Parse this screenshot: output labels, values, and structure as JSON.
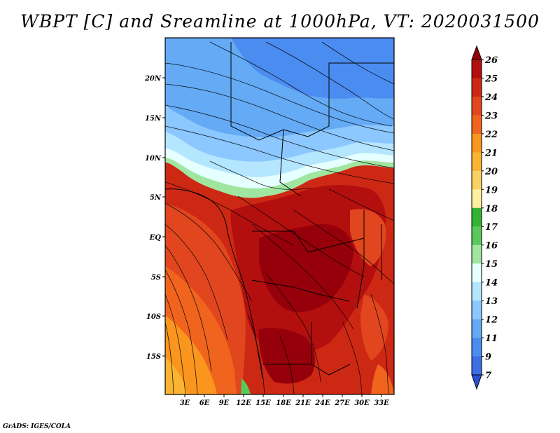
{
  "title": "WBPT [C] and Sreamline at 1000hPa, VT: 2020031500",
  "credit": "GrADS: IGES/COLA",
  "map": {
    "lat_labels": [
      "20N",
      "15N",
      "10N",
      "5N",
      "EQ",
      "5S",
      "10S",
      "15S"
    ],
    "lon_labels": [
      "3E",
      "6E",
      "9E",
      "12E",
      "15E",
      "18E",
      "21E",
      "24E",
      "27E",
      "30E",
      "33E"
    ]
  },
  "colorbar": {
    "labels": [
      "26",
      "25",
      "24",
      "23",
      "22",
      "21",
      "20",
      "19",
      "18",
      "17",
      "16",
      "15",
      "14",
      "13",
      "12",
      "11",
      "9",
      "7"
    ],
    "colors": [
      "#96000a",
      "#b40f0f",
      "#cd2814",
      "#e1461e",
      "#f0641e",
      "#fa961e",
      "#fab432",
      "#fad264",
      "#fff0a0",
      "#32b432",
      "#5ac85a",
      "#a0e6a0",
      "#e6ffff",
      "#b4e6ff",
      "#8cc8ff",
      "#64aaf5",
      "#4b8cf0",
      "#3c6ee6",
      "#2850d2"
    ]
  }
}
